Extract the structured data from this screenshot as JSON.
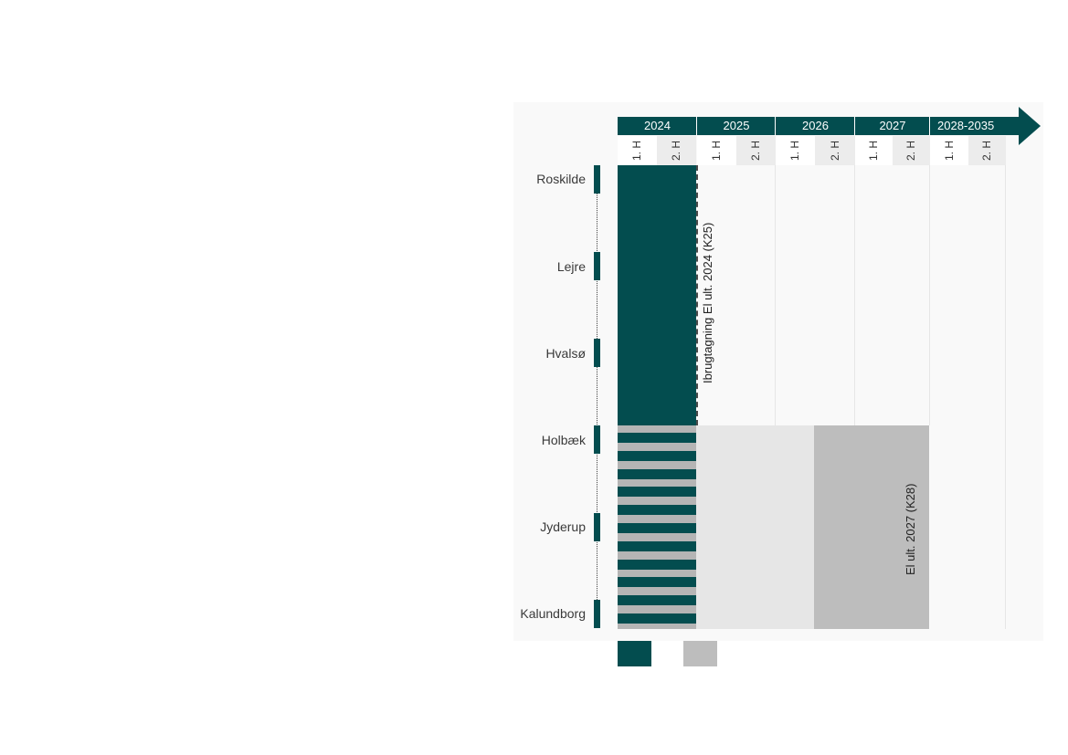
{
  "timeline": {
    "years": [
      {
        "label": "2024"
      },
      {
        "label": "2025"
      },
      {
        "label": "2026"
      },
      {
        "label": "2027"
      },
      {
        "label": "2028-2035"
      }
    ],
    "halves": [
      "1. H",
      "2. H",
      "1. H",
      "2. H",
      "1. H",
      "2. H",
      "1. H",
      "2. H",
      "1. H",
      "2. H"
    ]
  },
  "towns": [
    "Roskilde",
    "Lejre",
    "Hvalsø",
    "Holbæk",
    "Jyderup",
    "Kalundborg"
  ],
  "segments": {
    "first": {
      "label": "Ibrugtagning El ult. 2024 (K25)",
      "color": "#034d4f"
    },
    "second": {
      "label": "El ult. 2027 (K28)",
      "color": "#bdbdbd",
      "light_color": "#e6e6e6"
    }
  },
  "legend": {
    "items": [
      {
        "color": "#034d4f"
      },
      {
        "color": "#bdbdbd"
      }
    ]
  },
  "colors": {
    "accent": "#034d4f",
    "grey": "#bdbdbd",
    "light_grey": "#e6e6e6",
    "stripe": "#b5b5b5"
  }
}
